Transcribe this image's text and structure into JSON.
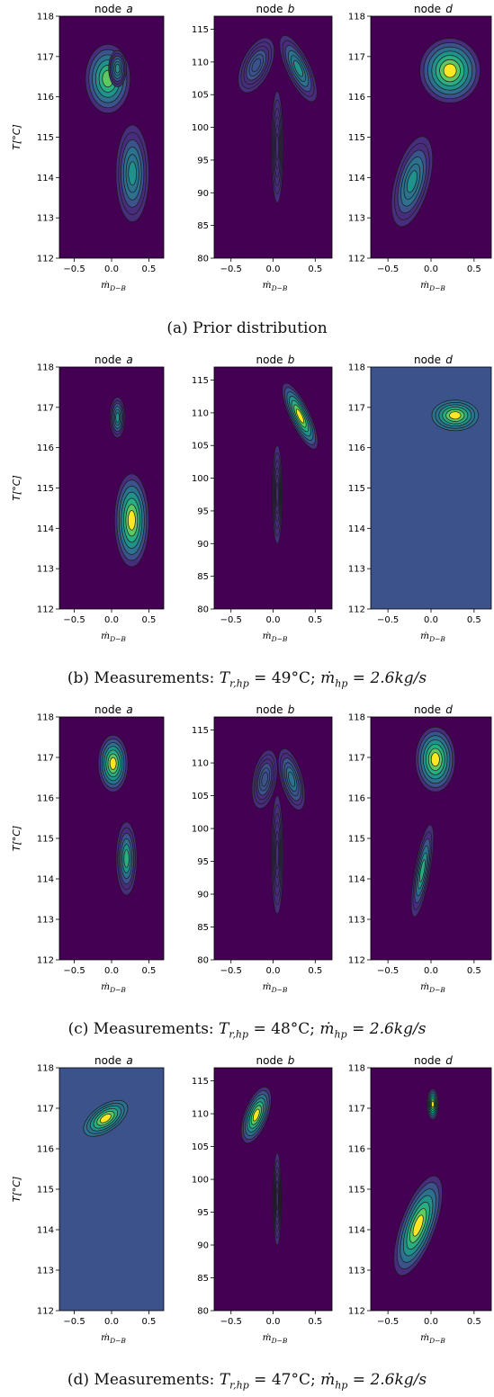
{
  "colors": {
    "dark_purple": "#440154",
    "purple": "#472d7b",
    "indigo": "#3b528b",
    "blue": "#2c728e",
    "teal": "#21918c",
    "green": "#28ae80",
    "lightgreen": "#5ec962",
    "yellow": "#fde725",
    "contour_line": "#1a1a1a"
  },
  "rows": [
    {
      "caption_label": "(a)",
      "caption_text": "Prior distribution",
      "caption_math": ""
    },
    {
      "caption_label": "(b)",
      "caption_text": "Measurements:",
      "caption_math": "T_{r,hp} = 49°C; ṁ_{hp} = 2.6kg/s",
      "caption_tr_value": "49°C",
      "caption_mhp_value": "2.6kg/s"
    },
    {
      "caption_label": "(c)",
      "caption_text": "Measurements:",
      "caption_math": "T_{r,hp} = 48°C; ṁ_{hp} = 2.6kg/s",
      "caption_tr_value": "48°C",
      "caption_mhp_value": "2.6kg/s"
    },
    {
      "caption_label": "(d)",
      "caption_text": "Measurements:",
      "caption_math": "T_{r,hp} = 47°C; ṁ_{hp} = 2.6kg/s",
      "caption_tr_value": "47°C",
      "caption_mhp_value": "2.6kg/s"
    }
  ],
  "chart_data": [
    {
      "type": "contour",
      "row": "a",
      "panels": [
        {
          "title": "node a",
          "ylabel": "T[°C]",
          "xlabel": "ṁ_{D−B}",
          "xlim": [
            -0.7,
            0.7
          ],
          "ylim": [
            112,
            118
          ],
          "xticks": [
            -0.5,
            0.0,
            0.5
          ],
          "yticks": [
            112,
            113,
            114,
            115,
            116,
            117,
            118
          ],
          "background": "dark_purple",
          "blobs": [
            {
              "cx": -0.05,
              "cy": 116.45,
              "rx": 0.3,
              "ry": 0.85,
              "rot": 0,
              "peak": "lightgreen"
            },
            {
              "cx": 0.08,
              "cy": 116.7,
              "rx": 0.12,
              "ry": 0.45,
              "rot": 0,
              "peak": "teal"
            },
            {
              "cx": 0.28,
              "cy": 114.1,
              "rx": 0.22,
              "ry": 1.2,
              "rot": 0,
              "peak": "teal"
            }
          ]
        },
        {
          "title": "node b",
          "ylabel": "",
          "xlabel": "ṁ_{D−B}",
          "xlim": [
            -0.7,
            0.7
          ],
          "ylim": [
            80,
            117
          ],
          "xticks": [
            -0.5,
            0.0,
            0.5
          ],
          "yticks": [
            80,
            85,
            90,
            95,
            100,
            105,
            110,
            115
          ],
          "background": "dark_purple",
          "blobs": [
            {
              "cx": -0.2,
              "cy": 109.5,
              "rx": 0.17,
              "ry": 4.5,
              "rot": 25,
              "peak": "indigo"
            },
            {
              "cx": 0.3,
              "cy": 109.0,
              "rx": 0.14,
              "ry": 5.5,
              "rot": -25,
              "peak": "teal"
            },
            {
              "cx": 0.05,
              "cy": 97.0,
              "rx": 0.07,
              "ry": 8.5,
              "rot": 0,
              "peak": "purple"
            }
          ]
        },
        {
          "title": "node d",
          "ylabel": "",
          "xlabel": "ṁ_{D−B}",
          "xlim": [
            -0.7,
            0.7
          ],
          "ylim": [
            112,
            118
          ],
          "xticks": [
            -0.5,
            0.0,
            0.5
          ],
          "yticks": [
            112,
            113,
            114,
            115,
            116,
            117,
            118
          ],
          "background": "dark_purple",
          "blobs": [
            {
              "cx": 0.22,
              "cy": 116.65,
              "rx": 0.35,
              "ry": 0.8,
              "rot": 0,
              "peak": "yellow"
            },
            {
              "cx": -0.22,
              "cy": 113.9,
              "rx": 0.2,
              "ry": 1.15,
              "rot": 15,
              "peak": "teal"
            }
          ]
        }
      ]
    },
    {
      "type": "contour",
      "row": "b",
      "panels": [
        {
          "title": "node a",
          "ylabel": "T[°C]",
          "xlabel": "ṁ_{D−B}",
          "xlim": [
            -0.7,
            0.7
          ],
          "ylim": [
            112,
            118
          ],
          "xticks": [
            -0.5,
            0.0,
            0.5
          ],
          "yticks": [
            112,
            113,
            114,
            115,
            116,
            117,
            118
          ],
          "background": "dark_purple",
          "blobs": [
            {
              "cx": 0.08,
              "cy": 116.75,
              "rx": 0.1,
              "ry": 0.5,
              "rot": 0,
              "peak": "teal"
            },
            {
              "cx": 0.27,
              "cy": 114.2,
              "rx": 0.23,
              "ry": 1.15,
              "rot": 0,
              "peak": "yellow"
            }
          ]
        },
        {
          "title": "node b",
          "ylabel": "",
          "xlabel": "ṁ_{D−B}",
          "xlim": [
            -0.7,
            0.7
          ],
          "ylim": [
            80,
            117
          ],
          "xticks": [
            -0.5,
            0.0,
            0.5
          ],
          "yticks": [
            80,
            85,
            90,
            95,
            100,
            105,
            110,
            115
          ],
          "background": "dark_purple",
          "blobs": [
            {
              "cx": 0.32,
              "cy": 109.5,
              "rx": 0.12,
              "ry": 5.5,
              "rot": -25,
              "peak": "yellow"
            },
            {
              "cx": 0.05,
              "cy": 97.5,
              "rx": 0.06,
              "ry": 7.5,
              "rot": 0,
              "peak": "purple"
            }
          ]
        },
        {
          "title": "node d",
          "ylabel": "",
          "xlabel": "ṁ_{D−B}",
          "xlim": [
            -0.7,
            0.7
          ],
          "ylim": [
            112,
            118
          ],
          "xticks": [
            -0.5,
            0.0,
            0.5
          ],
          "yticks": [
            112,
            113,
            114,
            115,
            116,
            117,
            118
          ],
          "background": "indigo",
          "blobs": [
            {
              "cx": 0.28,
              "cy": 116.8,
              "rx": 0.27,
              "ry": 0.38,
              "rot": 0,
              "peak": "yellow"
            }
          ]
        }
      ]
    },
    {
      "type": "contour",
      "row": "c",
      "panels": [
        {
          "title": "node a",
          "ylabel": "T[°C]",
          "xlabel": "ṁ_{D−B}",
          "xlim": [
            -0.7,
            0.7
          ],
          "ylim": [
            112,
            118
          ],
          "xticks": [
            -0.5,
            0.0,
            0.5
          ],
          "yticks": [
            112,
            113,
            114,
            115,
            116,
            117,
            118
          ],
          "background": "dark_purple",
          "blobs": [
            {
              "cx": 0.02,
              "cy": 116.85,
              "rx": 0.2,
              "ry": 0.7,
              "rot": 0,
              "peak": "yellow"
            },
            {
              "cx": 0.2,
              "cy": 114.5,
              "rx": 0.14,
              "ry": 0.9,
              "rot": 0,
              "peak": "green"
            }
          ]
        },
        {
          "title": "node b",
          "ylabel": "",
          "xlabel": "ṁ_{D−B}",
          "xlim": [
            -0.7,
            0.7
          ],
          "ylim": [
            80,
            117
          ],
          "xticks": [
            -0.5,
            0.0,
            0.5
          ],
          "yticks": [
            80,
            85,
            90,
            95,
            100,
            105,
            110,
            115
          ],
          "background": "dark_purple",
          "blobs": [
            {
              "cx": -0.1,
              "cy": 107.5,
              "rx": 0.14,
              "ry": 4.5,
              "rot": 10,
              "peak": "indigo"
            },
            {
              "cx": 0.22,
              "cy": 107.5,
              "rx": 0.13,
              "ry": 4.8,
              "rot": -15,
              "peak": "blue"
            },
            {
              "cx": 0.05,
              "cy": 96.0,
              "rx": 0.07,
              "ry": 9.0,
              "rot": 0,
              "peak": "purple"
            }
          ]
        },
        {
          "title": "node d",
          "ylabel": "",
          "xlabel": "ṁ_{D−B}",
          "xlim": [
            -0.7,
            0.7
          ],
          "ylim": [
            112,
            118
          ],
          "xticks": [
            -0.5,
            0.0,
            0.5
          ],
          "yticks": [
            112,
            113,
            114,
            115,
            116,
            117,
            118
          ],
          "background": "dark_purple",
          "blobs": [
            {
              "cx": 0.05,
              "cy": 116.95,
              "rx": 0.23,
              "ry": 0.8,
              "rot": 0,
              "peak": "yellow"
            },
            {
              "cx": -0.1,
              "cy": 114.2,
              "rx": 0.09,
              "ry": 1.15,
              "rot": 10,
              "peak": "green"
            }
          ]
        }
      ]
    },
    {
      "type": "contour",
      "row": "d",
      "panels": [
        {
          "title": "node a",
          "ylabel": "T[°C]",
          "xlabel": "ṁ_{D−B}",
          "xlim": [
            -0.7,
            0.7
          ],
          "ylim": [
            112,
            118
          ],
          "xticks": [
            -0.5,
            0.0,
            0.5
          ],
          "yticks": [
            112,
            113,
            114,
            115,
            116,
            117,
            118
          ],
          "background": "indigo",
          "blobs": [
            {
              "cx": -0.08,
              "cy": 116.75,
              "rx": 0.34,
              "ry": 0.32,
              "rot": -35,
              "peak": "yellow"
            }
          ]
        },
        {
          "title": "node b",
          "ylabel": "",
          "xlabel": "ṁ_{D−B}",
          "xlim": [
            -0.7,
            0.7
          ],
          "ylim": [
            80,
            117
          ],
          "xticks": [
            -0.5,
            0.0,
            0.5
          ],
          "yticks": [
            80,
            85,
            90,
            95,
            100,
            105,
            110,
            115
          ],
          "background": "dark_purple",
          "blobs": [
            {
              "cx": -0.2,
              "cy": 109.8,
              "rx": 0.14,
              "ry": 4.5,
              "rot": 20,
              "peak": "yellow"
            },
            {
              "cx": 0.05,
              "cy": 97.0,
              "rx": 0.05,
              "ry": 7.0,
              "rot": 0,
              "peak": "purple"
            }
          ]
        },
        {
          "title": "node d",
          "ylabel": "",
          "xlabel": "ṁ_{D−B}",
          "xlim": [
            -0.7,
            0.7
          ],
          "ylim": [
            112,
            118
          ],
          "xticks": [
            -0.5,
            0.0,
            0.5
          ],
          "yticks": [
            112,
            113,
            114,
            115,
            116,
            117,
            118
          ],
          "background": "dark_purple",
          "blobs": [
            {
              "cx": 0.02,
              "cy": 117.1,
              "rx": 0.07,
              "ry": 0.38,
              "rot": 0,
              "peak": "yellow"
            },
            {
              "cx": -0.15,
              "cy": 114.1,
              "rx": 0.2,
              "ry": 1.3,
              "rot": 20,
              "peak": "yellow"
            }
          ]
        }
      ]
    }
  ]
}
